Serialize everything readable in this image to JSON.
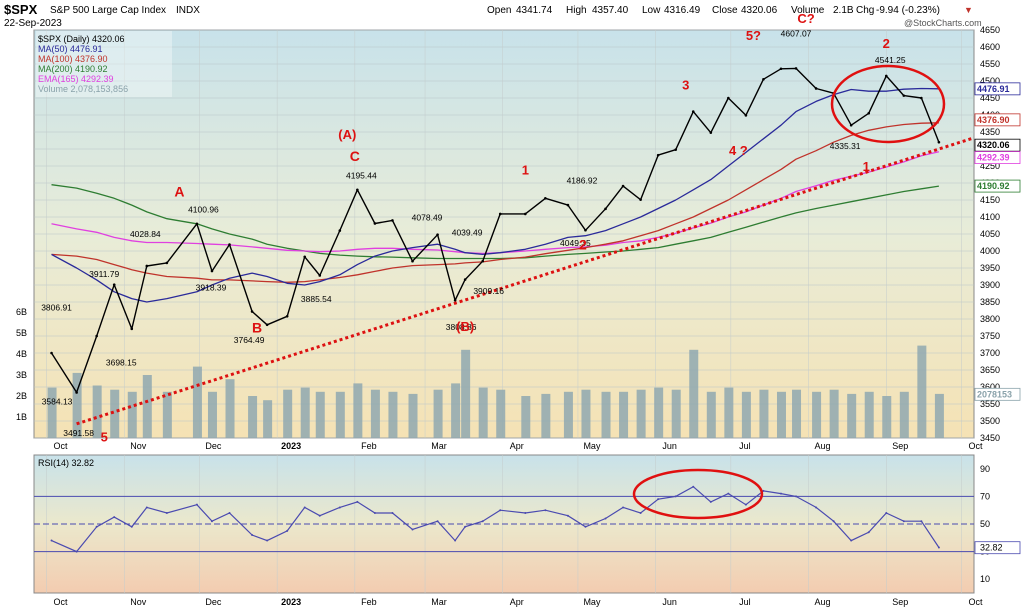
{
  "header": {
    "symbol": "$SPX",
    "name": "S&P 500 Large Cap Index",
    "exchange": "INDX",
    "date": "22-Sep-2023",
    "open_label": "Open",
    "open": "4341.74",
    "high_label": "High",
    "high": "4357.40",
    "low_label": "Low",
    "low": "4316.49",
    "close_label": "Close",
    "close": "4320.06",
    "volume_label": "Volume",
    "volume": "2.1B",
    "chg_label": "Chg",
    "chg": "-9.94 (-0.23%)",
    "down_arrow": "▼",
    "watermark": "@StockCharts.com"
  },
  "legend": [
    {
      "text": "$SPX (Daily) 4320.06",
      "color": "#000000"
    },
    {
      "text": "MA(50) 4476.91",
      "color": "#2a2a9a"
    },
    {
      "text": "MA(100) 4376.90",
      "color": "#c0332b"
    },
    {
      "text": "MA(200) 4190.92",
      "color": "#2e7d32"
    },
    {
      "text": "EMA(165) 4292.39",
      "color": "#e040e0"
    },
    {
      "text": "Volume 2,078,153,856",
      "color": "#8aa2aa"
    }
  ],
  "colors": {
    "price": "#000000",
    "ma50": "#2a2a9a",
    "ma100": "#c0332b",
    "ma200": "#2e7d32",
    "ema165": "#e040e0",
    "volume": "#8fa8b0",
    "trendline": "#dd1111",
    "wave_labels": "#dd1111",
    "rsi_line": "#4a4ab0",
    "rsi_fill": "#4a4ab0"
  },
  "price_axis": {
    "ticks": [
      "4650",
      "4600",
      "4550",
      "4500",
      "4450",
      "4400",
      "4350",
      "4300",
      "4250",
      "4200",
      "4150",
      "4100",
      "4050",
      "4000",
      "3950",
      "3900",
      "3850",
      "3800",
      "3750",
      "3700",
      "3650",
      "3600",
      "3550",
      "3500",
      "3450"
    ],
    "tags": [
      {
        "text": "4476.91",
        "color": "#2a2a9a"
      },
      {
        "text": "4376.90",
        "color": "#c0332b"
      },
      {
        "text": "4320.06",
        "color": "#000000"
      },
      {
        "text": "4292.39",
        "color": "#e040e0"
      },
      {
        "text": "4190.92",
        "color": "#2e7d32"
      },
      {
        "text": "2078153",
        "color": "#8aa2aa"
      }
    ]
  },
  "volume_axis": {
    "ticks": [
      "6B",
      "5B",
      "4B",
      "3B",
      "2B",
      "1B"
    ]
  },
  "x_axis": {
    "labels": [
      "Oct",
      "Nov",
      "Dec",
      "2023",
      "Feb",
      "Mar",
      "Apr",
      "May",
      "Jun",
      "Jul",
      "Aug",
      "Sep",
      "Oct"
    ]
  },
  "price_annotations": [
    "3806.91",
    "3584.13",
    "3491.58",
    "3911.79",
    "3698.15",
    "4028.84",
    "4100.96",
    "3918.39",
    "3764.49",
    "3885.54",
    "4195.44",
    "4078.49",
    "4039.49",
    "3808.86",
    "3909.16",
    "4186.92",
    "4049.35",
    "4607.07",
    "4541.25",
    "4335.31"
  ],
  "wave_labels": [
    "5",
    "A",
    "B",
    "(A)",
    "C",
    "(B)",
    "1",
    "2",
    "3",
    "4 ?",
    "5?",
    "C?",
    "2",
    "1"
  ],
  "rsi": {
    "title": "RSI(14) 32.82",
    "value_tag": "32.82",
    "ticks": [
      "90",
      "70",
      "50",
      "30",
      "10"
    ],
    "ylim": [
      0,
      100
    ],
    "reference_levels": [
      70,
      50,
      30
    ]
  },
  "chart_data": {
    "type": "line",
    "title": "$SPX S&P 500 Large Cap Index INDX",
    "xlabel": "",
    "ylabel": "",
    "ylim": [
      3450,
      4650
    ],
    "x": [
      "2022-10-03",
      "2022-10-13",
      "2022-10-21",
      "2022-10-28",
      "2022-11-04",
      "2022-11-10",
      "2022-11-18",
      "2022-11-30",
      "2022-12-06",
      "2022-12-13",
      "2022-12-22",
      "2022-12-28",
      "2023-01-05",
      "2023-01-12",
      "2023-01-18",
      "2023-01-26",
      "2023-02-02",
      "2023-02-09",
      "2023-02-16",
      "2023-02-24",
      "2023-03-06",
      "2023-03-13",
      "2023-03-17",
      "2023-03-24",
      "2023-03-31",
      "2023-04-10",
      "2023-04-18",
      "2023-04-27",
      "2023-05-04",
      "2023-05-12",
      "2023-05-19",
      "2023-05-26",
      "2023-06-02",
      "2023-06-09",
      "2023-06-16",
      "2023-06-23",
      "2023-06-30",
      "2023-07-07",
      "2023-07-14",
      "2023-07-21",
      "2023-07-27",
      "2023-08-04",
      "2023-08-11",
      "2023-08-18",
      "2023-08-25",
      "2023-09-01",
      "2023-09-08",
      "2023-09-15",
      "2023-09-22"
    ],
    "series": [
      {
        "name": "$SPX (Daily)",
        "values": [
          3700,
          3584,
          3750,
          3901,
          3771,
          3956,
          3965,
          4080,
          3941,
          4019,
          3822,
          3783,
          3808,
          3983,
          3928,
          4060,
          4180,
          4081,
          4090,
          3970,
          4048,
          3855,
          3916,
          3970,
          4109,
          4109,
          4155,
          4135,
          4061,
          4124,
          4191,
          4151,
          4282,
          4298,
          4410,
          4348,
          4450,
          4399,
          4505,
          4536,
          4537,
          4478,
          4464,
          4370,
          4405,
          4515,
          4457,
          4450,
          4320
        ]
      },
      {
        "name": "MA(50)",
        "values": [
          3990,
          3950,
          3915,
          3880,
          3860,
          3850,
          3860,
          3880,
          3900,
          3920,
          3935,
          3925,
          3905,
          3900,
          3910,
          3930,
          3960,
          3985,
          4000,
          4010,
          4020,
          4005,
          3995,
          3990,
          3995,
          4005,
          4020,
          4040,
          4045,
          4060,
          4080,
          4100,
          4125,
          4150,
          4180,
          4210,
          4250,
          4290,
          4330,
          4370,
          4410,
          4440,
          4460,
          4475,
          4470,
          4470,
          4476,
          4478,
          4477
        ]
      },
      {
        "name": "MA(100)",
        "values": [
          3990,
          3985,
          3975,
          3960,
          3945,
          3935,
          3925,
          3920,
          3915,
          3915,
          3912,
          3910,
          3908,
          3910,
          3915,
          3922,
          3930,
          3940,
          3950,
          3957,
          3960,
          3962,
          3965,
          3968,
          3975,
          3982,
          3992,
          4002,
          4010,
          4020,
          4030,
          4045,
          4060,
          4080,
          4100,
          4125,
          4150,
          4180,
          4210,
          4240,
          4270,
          4295,
          4320,
          4340,
          4355,
          4365,
          4372,
          4376,
          4377
        ]
      },
      {
        "name": "MA(200)",
        "values": [
          4195,
          4185,
          4170,
          4155,
          4135,
          4115,
          4095,
          4080,
          4065,
          4050,
          4035,
          4020,
          4008,
          4000,
          3993,
          3988,
          3985,
          3983,
          3982,
          3980,
          3978,
          3978,
          3978,
          3978,
          3978,
          3980,
          3985,
          3990,
          3993,
          3997,
          4000,
          4005,
          4010,
          4020,
          4030,
          4040,
          4055,
          4070,
          4085,
          4100,
          4112,
          4125,
          4135,
          4145,
          4155,
          4165,
          4175,
          4183,
          4191
        ]
      },
      {
        "name": "EMA(165)",
        "values": [
          4080,
          4065,
          4055,
          4040,
          4030,
          4025,
          4025,
          4022,
          4020,
          4018,
          4012,
          4008,
          4002,
          4000,
          3998,
          4000,
          4005,
          4008,
          4008,
          4005,
          4003,
          3998,
          3995,
          3993,
          3995,
          4000,
          4005,
          4010,
          4012,
          4017,
          4025,
          4030,
          4040,
          4052,
          4068,
          4082,
          4100,
          4115,
          4135,
          4155,
          4175,
          4192,
          4208,
          4220,
          4232,
          4247,
          4262,
          4280,
          4292
        ]
      },
      {
        "name": "Volume",
        "values": [
          2.4,
          3.1,
          2.5,
          2.3,
          2.2,
          3.0,
          2.2,
          3.4,
          2.2,
          2.8,
          2.0,
          1.8,
          2.3,
          2.4,
          2.2,
          2.2,
          2.6,
          2.3,
          2.2,
          2.1,
          2.3,
          2.6,
          4.2,
          2.4,
          2.3,
          2.0,
          2.1,
          2.2,
          2.3,
          2.2,
          2.2,
          2.3,
          2.4,
          2.3,
          4.2,
          2.2,
          2.4,
          2.2,
          2.3,
          2.2,
          2.3,
          2.2,
          2.3,
          2.1,
          2.2,
          2.0,
          2.2,
          4.4,
          2.1
        ]
      },
      {
        "name": "RSI(14)",
        "values": [
          38,
          30,
          48,
          55,
          48,
          62,
          58,
          64,
          52,
          58,
          42,
          38,
          45,
          62,
          56,
          62,
          66,
          58,
          58,
          46,
          52,
          38,
          48,
          52,
          60,
          58,
          60,
          56,
          48,
          54,
          62,
          58,
          68,
          70,
          77,
          66,
          72,
          64,
          74,
          72,
          70,
          62,
          52,
          38,
          44,
          58,
          52,
          52,
          33
        ]
      }
    ],
    "trendline": {
      "name": "trend support",
      "from": [
        "2022-10-13",
        3491.58
      ],
      "to": [
        "2023-09-22",
        4300
      ]
    }
  }
}
